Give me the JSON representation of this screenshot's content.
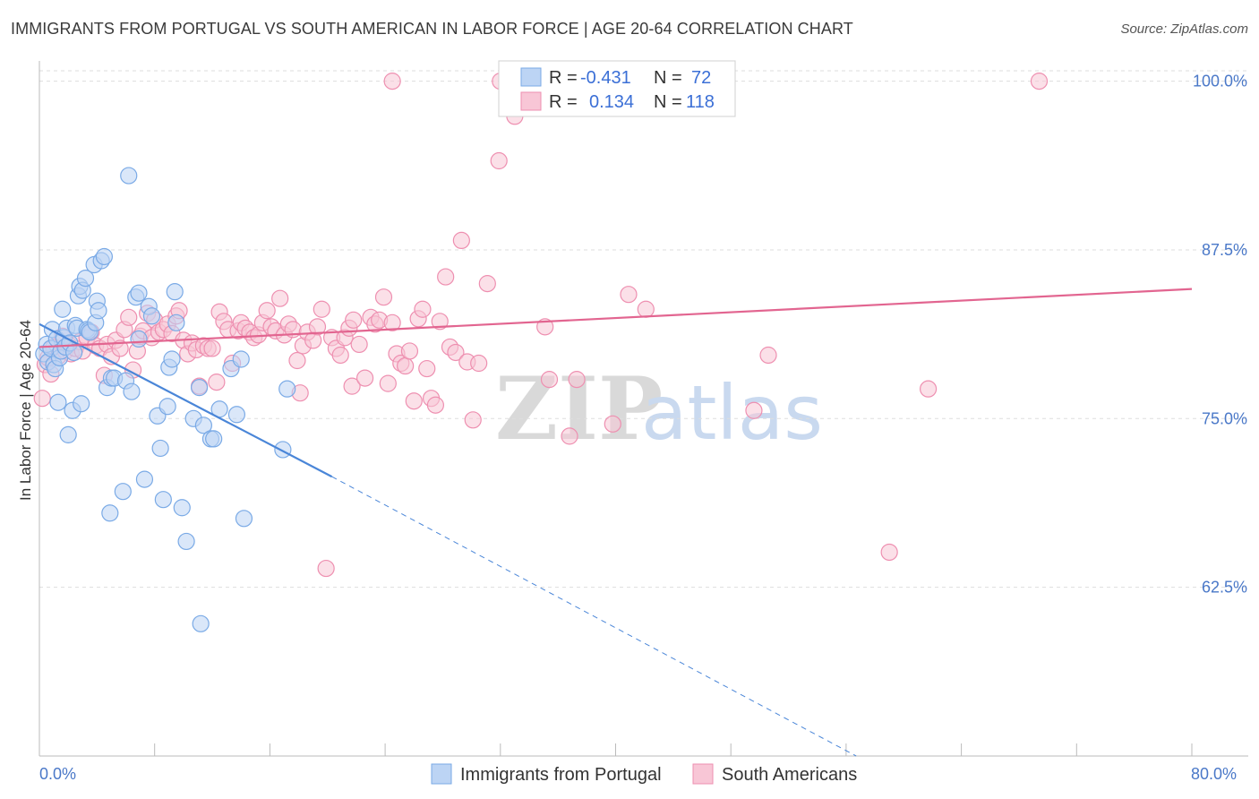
{
  "title": "IMMIGRANTS FROM PORTUGAL VS SOUTH AMERICAN IN LABOR FORCE | AGE 20-64 CORRELATION CHART",
  "source": "Source: ZipAtlas.com",
  "watermark": {
    "zip": "ZIP",
    "atlas": "atlas"
  },
  "legend": {
    "r_label": "R =",
    "n_label": "N =",
    "entries": [
      {
        "name": "Immigrants from Portugal",
        "r": "-0.431",
        "n": "72",
        "color": "#7aaae6",
        "fill": "#bcd4f4"
      },
      {
        "name": "South Americans",
        "r": "0.134",
        "n": "118",
        "color": "#ee8fb0",
        "fill": "#f8c6d6"
      }
    ]
  },
  "chart_data": {
    "type": "scatter",
    "ylabel": "In Labor Force | Age 20-64",
    "xlim": [
      0,
      80
    ],
    "ylim": [
      50,
      101.5
    ],
    "x_tick_labels": [
      {
        "value": 0,
        "label": "0.0%"
      },
      {
        "value": 80,
        "label": "80.0%"
      }
    ],
    "x_minor_ticks": [
      0,
      8,
      16,
      24,
      32,
      40,
      48,
      56,
      64,
      72,
      80
    ],
    "y_ticks": [
      {
        "value": 100,
        "label": "100.0%"
      },
      {
        "value": 87.5,
        "label": "87.5%"
      },
      {
        "value": 75,
        "label": "75.0%"
      },
      {
        "value": 62.5,
        "label": "62.5%"
      }
    ],
    "grid": "horizontal-dashed",
    "legend_position": "top-center",
    "series": [
      {
        "name": "Immigrants from Portugal",
        "color": "#4a86d8",
        "trend": {
          "x": [
            0,
            20.3
          ],
          "y": [
            82.0,
            70.7
          ],
          "dashed_to": [
            56.7,
            50.0
          ]
        },
        "points": [
          [
            0.3,
            79.8
          ],
          [
            0.5,
            80.5
          ],
          [
            0.6,
            79.2
          ],
          [
            0.8,
            80.2
          ],
          [
            0.9,
            81.6
          ],
          [
            1.0,
            79.0
          ],
          [
            1.1,
            78.7
          ],
          [
            1.2,
            80.9
          ],
          [
            1.3,
            76.2
          ],
          [
            1.4,
            79.5
          ],
          [
            1.5,
            80.0
          ],
          [
            1.6,
            83.1
          ],
          [
            1.7,
            81.0
          ],
          [
            1.8,
            80.3
          ],
          [
            1.9,
            81.7
          ],
          [
            2.0,
            73.8
          ],
          [
            2.1,
            80.6
          ],
          [
            2.3,
            75.6
          ],
          [
            2.4,
            79.9
          ],
          [
            2.5,
            81.9
          ],
          [
            2.6,
            81.7
          ],
          [
            2.7,
            84.1
          ],
          [
            2.8,
            84.8
          ],
          [
            2.9,
            76.1
          ],
          [
            3.0,
            84.5
          ],
          [
            3.2,
            85.4
          ],
          [
            3.3,
            81.6
          ],
          [
            3.4,
            81.5
          ],
          [
            3.5,
            81.4
          ],
          [
            3.8,
            86.4
          ],
          [
            3.9,
            82.1
          ],
          [
            4.0,
            83.7
          ],
          [
            4.1,
            83.0
          ],
          [
            4.3,
            86.7
          ],
          [
            4.5,
            87.0
          ],
          [
            4.7,
            77.3
          ],
          [
            4.9,
            68.0
          ],
          [
            5.0,
            78.0
          ],
          [
            5.2,
            78.0
          ],
          [
            5.8,
            69.6
          ],
          [
            6.0,
            77.8
          ],
          [
            6.2,
            93.0
          ],
          [
            6.4,
            77.0
          ],
          [
            6.7,
            84.0
          ],
          [
            6.9,
            84.3
          ],
          [
            6.9,
            80.9
          ],
          [
            7.3,
            70.5
          ],
          [
            7.6,
            83.3
          ],
          [
            7.8,
            82.6
          ],
          [
            8.2,
            75.2
          ],
          [
            8.4,
            72.8
          ],
          [
            8.6,
            69.0
          ],
          [
            8.9,
            75.9
          ],
          [
            9.0,
            78.8
          ],
          [
            9.2,
            79.4
          ],
          [
            9.4,
            84.4
          ],
          [
            9.5,
            82.1
          ],
          [
            9.9,
            68.4
          ],
          [
            10.2,
            65.9
          ],
          [
            10.7,
            75.0
          ],
          [
            11.1,
            77.3
          ],
          [
            11.2,
            59.8
          ],
          [
            11.4,
            74.5
          ],
          [
            11.9,
            73.5
          ],
          [
            12.1,
            73.5
          ],
          [
            12.5,
            75.7
          ],
          [
            13.3,
            78.7
          ],
          [
            13.7,
            75.3
          ],
          [
            14.0,
            79.4
          ],
          [
            14.2,
            67.6
          ],
          [
            16.9,
            72.7
          ],
          [
            17.2,
            77.2
          ]
        ]
      },
      {
        "name": "South Americans",
        "color": "#e26590",
        "trend": {
          "x": [
            0,
            80
          ],
          "y": [
            80.3,
            84.6
          ]
        },
        "points": [
          [
            0.2,
            76.5
          ],
          [
            0.4,
            79.0
          ],
          [
            0.6,
            79.5
          ],
          [
            0.8,
            78.3
          ],
          [
            1.0,
            80.3
          ],
          [
            1.3,
            79.6
          ],
          [
            1.6,
            81.1
          ],
          [
            1.8,
            80.0
          ],
          [
            2.0,
            80.5
          ],
          [
            2.2,
            79.8
          ],
          [
            2.5,
            80.2
          ],
          [
            2.8,
            80.7
          ],
          [
            3.0,
            80.0
          ],
          [
            3.3,
            81.0
          ],
          [
            3.6,
            81.4
          ],
          [
            3.9,
            80.4
          ],
          [
            4.2,
            80.2
          ],
          [
            4.5,
            78.2
          ],
          [
            4.7,
            80.5
          ],
          [
            5.0,
            79.6
          ],
          [
            5.3,
            80.8
          ],
          [
            5.6,
            80.2
          ],
          [
            5.9,
            81.6
          ],
          [
            6.2,
            82.5
          ],
          [
            6.5,
            78.6
          ],
          [
            6.8,
            80.0
          ],
          [
            7.0,
            81.1
          ],
          [
            7.2,
            81.5
          ],
          [
            7.5,
            82.8
          ],
          [
            7.8,
            81.0
          ],
          [
            8.0,
            82.3
          ],
          [
            8.3,
            81.4
          ],
          [
            8.6,
            81.6
          ],
          [
            8.9,
            82.0
          ],
          [
            9.2,
            81.3
          ],
          [
            9.5,
            82.6
          ],
          [
            9.7,
            83.0
          ],
          [
            10.0,
            80.8
          ],
          [
            10.3,
            79.8
          ],
          [
            10.6,
            80.6
          ],
          [
            10.9,
            80.1
          ],
          [
            11.1,
            77.4
          ],
          [
            11.4,
            80.4
          ],
          [
            11.7,
            80.2
          ],
          [
            12.0,
            80.2
          ],
          [
            12.3,
            77.7
          ],
          [
            12.5,
            82.9
          ],
          [
            12.8,
            82.2
          ],
          [
            13.1,
            81.6
          ],
          [
            13.4,
            79.1
          ],
          [
            13.8,
            81.5
          ],
          [
            14.0,
            82.1
          ],
          [
            14.3,
            81.7
          ],
          [
            14.6,
            81.4
          ],
          [
            14.9,
            81.0
          ],
          [
            15.2,
            81.2
          ],
          [
            15.5,
            82.1
          ],
          [
            15.8,
            83.0
          ],
          [
            16.1,
            81.8
          ],
          [
            16.4,
            81.5
          ],
          [
            16.7,
            83.9
          ],
          [
            17.0,
            81.2
          ],
          [
            17.3,
            82.0
          ],
          [
            17.6,
            81.6
          ],
          [
            17.9,
            79.3
          ],
          [
            18.1,
            76.9
          ],
          [
            18.3,
            80.4
          ],
          [
            18.6,
            81.4
          ],
          [
            19.0,
            80.8
          ],
          [
            19.3,
            81.8
          ],
          [
            19.6,
            83.1
          ],
          [
            19.9,
            63.9
          ],
          [
            20.3,
            81.0
          ],
          [
            20.6,
            80.2
          ],
          [
            20.9,
            79.7
          ],
          [
            21.2,
            81.0
          ],
          [
            21.5,
            81.7
          ],
          [
            21.7,
            77.4
          ],
          [
            21.8,
            82.3
          ],
          [
            22.2,
            80.5
          ],
          [
            22.6,
            78.0
          ],
          [
            23.0,
            82.5
          ],
          [
            23.3,
            82.0
          ],
          [
            23.6,
            82.3
          ],
          [
            23.9,
            84.0
          ],
          [
            24.2,
            77.6
          ],
          [
            24.5,
            82.1
          ],
          [
            24.8,
            79.8
          ],
          [
            25.1,
            79.1
          ],
          [
            25.4,
            78.9
          ],
          [
            25.7,
            80.0
          ],
          [
            26.0,
            76.3
          ],
          [
            26.3,
            82.4
          ],
          [
            26.6,
            83.1
          ],
          [
            26.9,
            78.7
          ],
          [
            27.2,
            76.5
          ],
          [
            27.5,
            76.0
          ],
          [
            27.8,
            82.2
          ],
          [
            28.2,
            85.5
          ],
          [
            28.5,
            80.3
          ],
          [
            28.9,
            79.9
          ],
          [
            29.3,
            88.2
          ],
          [
            29.7,
            79.2
          ],
          [
            30.1,
            74.9
          ],
          [
            30.5,
            79.1
          ],
          [
            31.1,
            85.0
          ],
          [
            31.9,
            94.1
          ],
          [
            32.0,
            100.0
          ],
          [
            33.0,
            97.4
          ],
          [
            35.1,
            81.8
          ],
          [
            35.4,
            77.9
          ],
          [
            36.8,
            73.7
          ],
          [
            37.3,
            77.9
          ],
          [
            39.8,
            74.6
          ],
          [
            40.9,
            84.2
          ],
          [
            42.1,
            83.1
          ],
          [
            49.6,
            75.6
          ],
          [
            50.6,
            79.7
          ],
          [
            59.0,
            65.1
          ],
          [
            61.7,
            77.2
          ],
          [
            69.4,
            100.0
          ],
          [
            24.5,
            100.0
          ]
        ]
      }
    ]
  }
}
